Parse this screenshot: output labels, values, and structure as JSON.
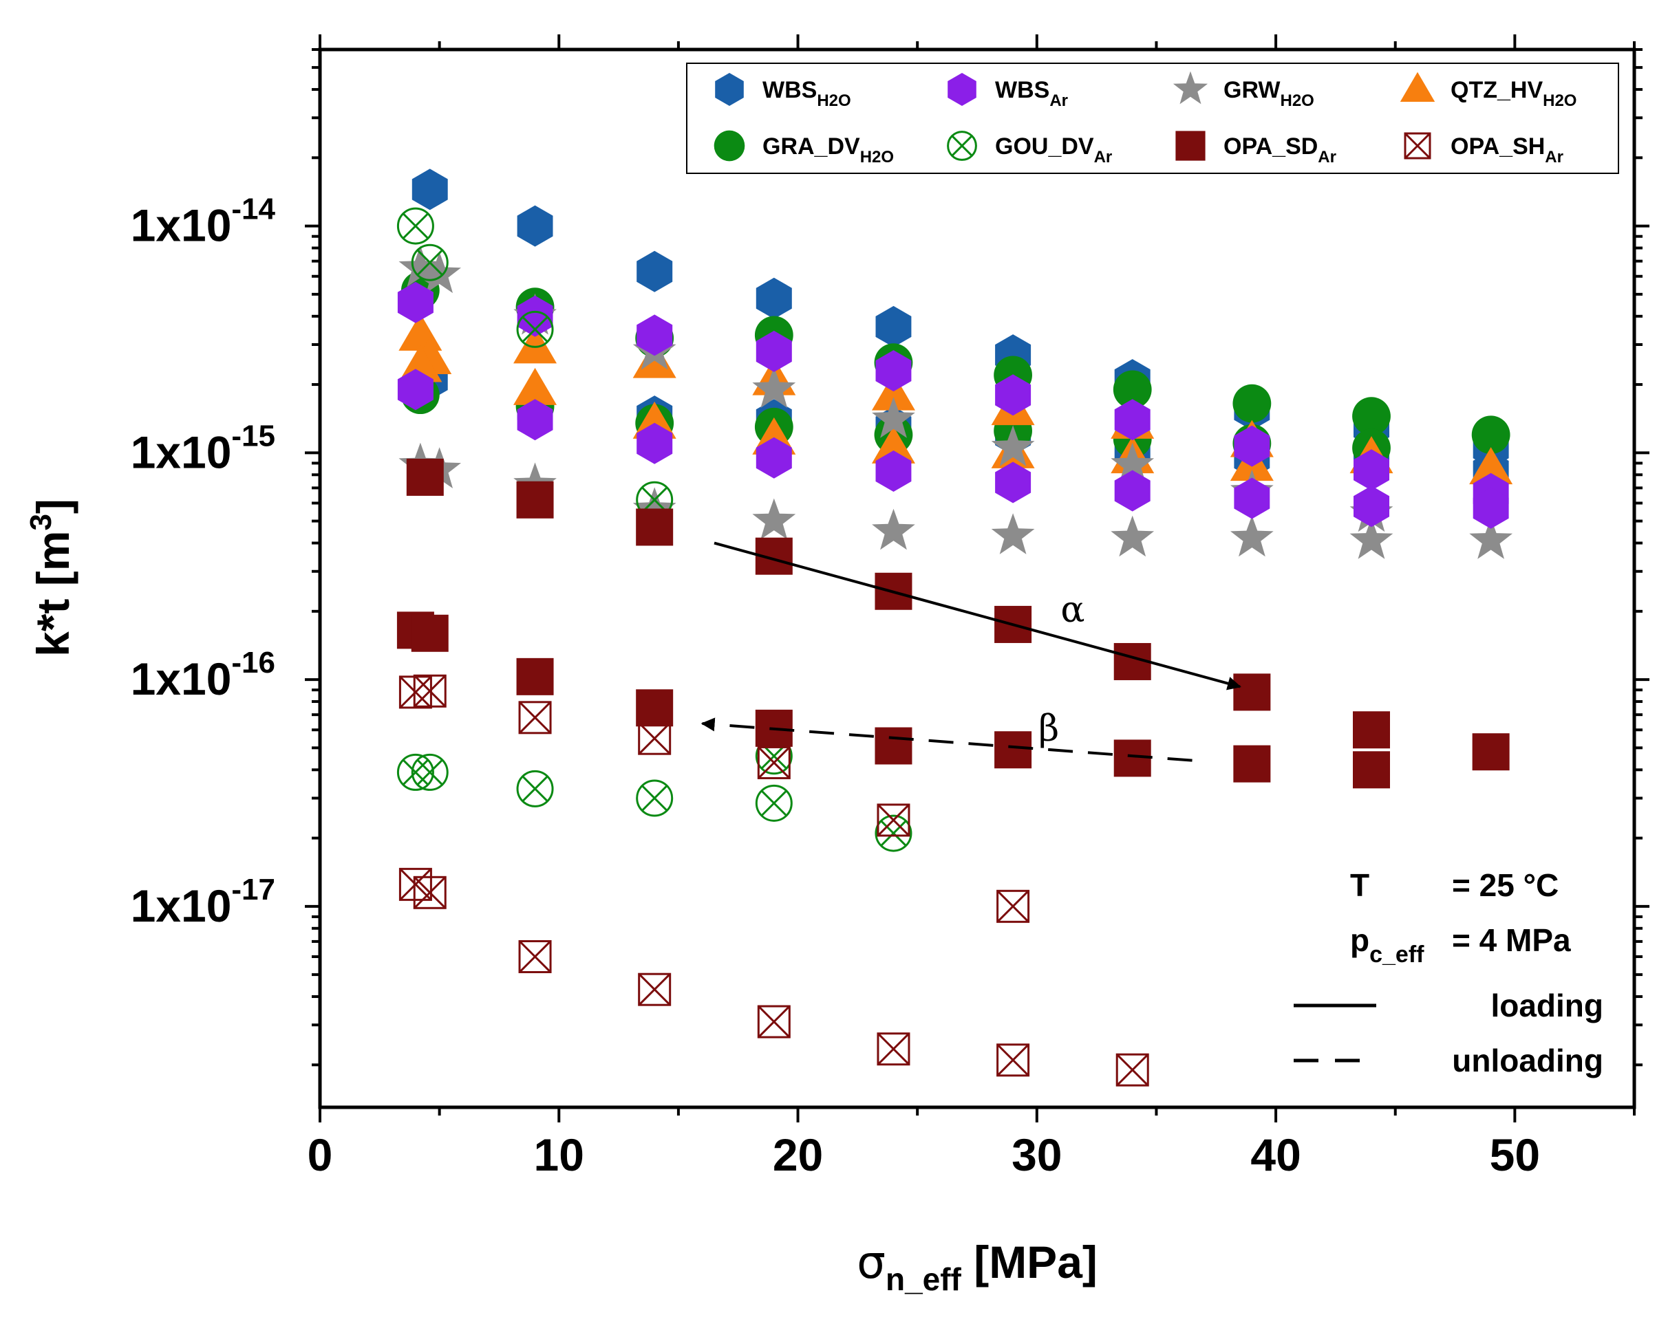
{
  "chart_data": {
    "type": "scatter",
    "title": "",
    "xlabel": {
      "main": "σ",
      "sub": "n_eff",
      "rest": " [MPa]"
    },
    "ylabel": {
      "main": "k*t [m",
      "sup": "3",
      "rest": "]"
    },
    "xlim": [
      0,
      55
    ],
    "ylim": [
      1.3e-18,
      6e-14
    ],
    "yscale": "log",
    "x_ticks": [
      {
        "value": 0,
        "label": "0"
      },
      {
        "value": 10,
        "label": "10"
      },
      {
        "value": 20,
        "label": "20"
      },
      {
        "value": 30,
        "label": "30"
      },
      {
        "value": 40,
        "label": "40"
      },
      {
        "value": 50,
        "label": "50"
      }
    ],
    "y_ticks": [
      {
        "value": 1e-14,
        "base": "1x10",
        "exp": "-14"
      },
      {
        "value": 1e-15,
        "base": "1x10",
        "exp": "-15"
      },
      {
        "value": 1e-16,
        "base": "1x10",
        "exp": "-16"
      },
      {
        "value": 1e-17,
        "base": "1x10",
        "exp": "-17"
      }
    ],
    "legend_position": "top-right",
    "series": [
      {
        "id": "wbs-h2o",
        "name": "WBS",
        "sub": "H2O",
        "marker": "hexagon",
        "color": "#1a5fa8",
        "filled": true,
        "points": [
          [
            4.6,
            1.45e-14
          ],
          [
            9,
            1e-14
          ],
          [
            14,
            6.3e-15
          ],
          [
            19,
            4.8e-15
          ],
          [
            24,
            3.6e-15
          ],
          [
            29,
            2.7e-15
          ],
          [
            34,
            2.1e-15
          ],
          [
            39,
            1.55e-15
          ],
          [
            44,
            1.3e-15
          ],
          [
            49,
            1.05e-15
          ],
          [
            4.6,
            2.1e-15
          ],
          [
            9,
            1.55e-15
          ],
          [
            14,
            1.45e-15
          ],
          [
            19,
            1.4e-15
          ],
          [
            24,
            1.3e-15
          ],
          [
            29,
            1.2e-15
          ],
          [
            34,
            1.05e-15
          ],
          [
            39,
            9.5e-16
          ],
          [
            44,
            8.8e-16
          ],
          [
            49,
            8.3e-16
          ]
        ]
      },
      {
        "id": "wbs-ar",
        "name": "WBS",
        "sub": "Ar",
        "marker": "hexagon",
        "color": "#8b1fe8",
        "filled": true,
        "points": [
          [
            4,
            4.6e-15
          ],
          [
            9,
            4e-15
          ],
          [
            14,
            3.3e-15
          ],
          [
            19,
            2.8e-15
          ],
          [
            24,
            2.3e-15
          ],
          [
            29,
            1.8e-15
          ],
          [
            34,
            1.4e-15
          ],
          [
            39,
            1.07e-15
          ],
          [
            44,
            8.4e-16
          ],
          [
            49,
            6.6e-16
          ],
          [
            4,
            1.9e-15
          ],
          [
            9,
            1.4e-15
          ],
          [
            14,
            1.1e-15
          ],
          [
            19,
            9.5e-16
          ],
          [
            24,
            8.3e-16
          ],
          [
            29,
            7.4e-16
          ],
          [
            34,
            6.8e-16
          ],
          [
            39,
            6.3e-16
          ],
          [
            44,
            5.8e-16
          ],
          [
            49,
            5.7e-16
          ]
        ]
      },
      {
        "id": "grw-h2o",
        "name": "GRW",
        "sub": "H2O",
        "marker": "star",
        "color": "#8c8c8c",
        "filled": true,
        "points": [
          [
            4.2,
            6.5e-15
          ],
          [
            5,
            6.1e-15
          ],
          [
            9,
            4e-15
          ],
          [
            14,
            2.8e-15
          ],
          [
            19,
            1.9e-15
          ],
          [
            24,
            1.4e-15
          ],
          [
            29,
            1.05e-15
          ],
          [
            34,
            8.8e-16
          ],
          [
            39,
            6.7e-16
          ],
          [
            44,
            5.4e-16
          ],
          [
            4.2,
            8.8e-16
          ],
          [
            5,
            8.4e-16
          ],
          [
            9,
            7.2e-16
          ],
          [
            14,
            5.6e-16
          ],
          [
            19,
            5e-16
          ],
          [
            24,
            4.5e-16
          ],
          [
            29,
            4.3e-16
          ],
          [
            34,
            4.2e-16
          ],
          [
            39,
            4.2e-16
          ],
          [
            44,
            4.1e-16
          ],
          [
            49,
            4.1e-16
          ]
        ]
      },
      {
        "id": "qtz-hv-h2o",
        "name": "QTZ_HV",
        "sub": "H2O",
        "marker": "triangle",
        "color": "#f77f0f",
        "filled": true,
        "points": [
          [
            4.2,
            3.3e-15
          ],
          [
            4.6,
            2.6e-15
          ],
          [
            9,
            2.9e-15
          ],
          [
            14,
            2.5e-15
          ],
          [
            19,
            2.1e-15
          ],
          [
            24,
            1.8e-15
          ],
          [
            29,
            1.55e-15
          ],
          [
            34,
            1.35e-15
          ],
          [
            39,
            1.12e-15
          ],
          [
            44,
            9.5e-16
          ],
          [
            49,
            8.5e-16
          ],
          [
            4.2,
            2.4e-15
          ],
          [
            9,
            1.9e-15
          ],
          [
            14,
            1.35e-15
          ],
          [
            19,
            1.15e-15
          ],
          [
            24,
            1.05e-15
          ],
          [
            29,
            1e-15
          ],
          [
            34,
            9.5e-16
          ],
          [
            39,
            8.8e-16
          ]
        ]
      },
      {
        "id": "gra-dv-h2o",
        "name": "GRA_DV",
        "sub": "H2O",
        "marker": "circle",
        "color": "#0b8a13",
        "filled": true,
        "points": [
          [
            4.2,
            5.2e-15
          ],
          [
            9,
            4.4e-15
          ],
          [
            14,
            3.2e-15
          ],
          [
            19,
            3.3e-15
          ],
          [
            24,
            2.5e-15
          ],
          [
            29,
            2.2e-15
          ],
          [
            34,
            1.9e-15
          ],
          [
            39,
            1.65e-15
          ],
          [
            44,
            1.45e-15
          ],
          [
            49,
            1.2e-15
          ],
          [
            4.2,
            1.8e-15
          ],
          [
            9,
            1.6e-15
          ],
          [
            14,
            1.35e-15
          ],
          [
            19,
            1.3e-15
          ],
          [
            24,
            1.2e-15
          ],
          [
            29,
            1.25e-15
          ],
          [
            34,
            1.15e-15
          ],
          [
            39,
            1.1e-15
          ],
          [
            44,
            1.05e-15
          ]
        ]
      },
      {
        "id": "gou-dv-ar",
        "name": "GOU_DV",
        "sub": "Ar",
        "marker": "circle-x",
        "color": "#0b8a13",
        "filled": false,
        "points": [
          [
            4,
            1e-14
          ],
          [
            4.6,
            6.9e-15
          ],
          [
            9,
            3.5e-15
          ],
          [
            14,
            6.2e-16
          ],
          [
            19,
            4.6e-17
          ],
          [
            24,
            2.1e-17
          ],
          [
            4,
            3.9e-17
          ],
          [
            4.6,
            3.9e-17
          ],
          [
            9,
            3.3e-17
          ],
          [
            14,
            3e-17
          ],
          [
            19,
            2.85e-17
          ]
        ]
      },
      {
        "id": "opa-sd-ar",
        "name": "OPA_SD",
        "sub": "Ar",
        "marker": "square",
        "color": "#7b0d0d",
        "filled": true,
        "points": [
          [
            4.4,
            7.8e-16
          ],
          [
            9,
            6.2e-16
          ],
          [
            14,
            4.7e-16
          ],
          [
            19,
            3.5e-16
          ],
          [
            24,
            2.45e-16
          ],
          [
            29,
            1.75e-16
          ],
          [
            34,
            1.2e-16
          ],
          [
            39,
            8.8e-17
          ],
          [
            4,
            1.65e-16
          ],
          [
            4.6,
            1.6e-16
          ],
          [
            9,
            1.03e-16
          ],
          [
            14,
            7.5e-17
          ],
          [
            19,
            6.1e-17
          ],
          [
            24,
            5.1e-17
          ],
          [
            29,
            4.9e-17
          ],
          [
            34,
            4.5e-17
          ],
          [
            39,
            4.25e-17
          ],
          [
            44,
            4e-17
          ],
          [
            44,
            6e-17
          ],
          [
            49,
            4.8e-17
          ]
        ]
      },
      {
        "id": "opa-sh-ar",
        "name": "OPA_SH",
        "sub": "Ar",
        "marker": "square-x",
        "color": "#7b0d0d",
        "filled": false,
        "points": [
          [
            4,
            8.8e-17
          ],
          [
            4.6,
            8.9e-17
          ],
          [
            9,
            6.8e-17
          ],
          [
            14,
            5.5e-17
          ],
          [
            19,
            4.3e-17
          ],
          [
            24,
            2.4e-17
          ],
          [
            4,
            1.25e-17
          ],
          [
            4.6,
            1.15e-17
          ],
          [
            9,
            6e-18
          ],
          [
            14,
            4.3e-18
          ],
          [
            19,
            3.1e-18
          ],
          [
            24,
            2.35e-18
          ],
          [
            29,
            2.1e-18
          ],
          [
            34,
            1.9e-18
          ],
          [
            29,
            1e-17
          ]
        ]
      }
    ],
    "arrows": [
      {
        "id": "alpha",
        "label": "α",
        "style": "solid",
        "from": [
          16.5,
          4e-16
        ],
        "to": [
          38.5,
          9.3e-17
        ],
        "label_at": [
          31.5,
          1.8e-16
        ]
      },
      {
        "id": "beta",
        "label": "β",
        "style": "dashed",
        "from": [
          36.5,
          4.4e-17
        ],
        "to": [
          16,
          6.4e-17
        ],
        "label_at": [
          30.5,
          5.4e-17
        ]
      }
    ],
    "conditions": {
      "temp_label": "T",
      "temp_value": "= 25 °C",
      "pressure_label_main": "p",
      "pressure_label_sub": "c_eff",
      "pressure_value": "= 4 MPa"
    },
    "line_legend": [
      {
        "style": "solid",
        "label": "loading"
      },
      {
        "style": "dashed",
        "label": "unloading"
      }
    ]
  }
}
